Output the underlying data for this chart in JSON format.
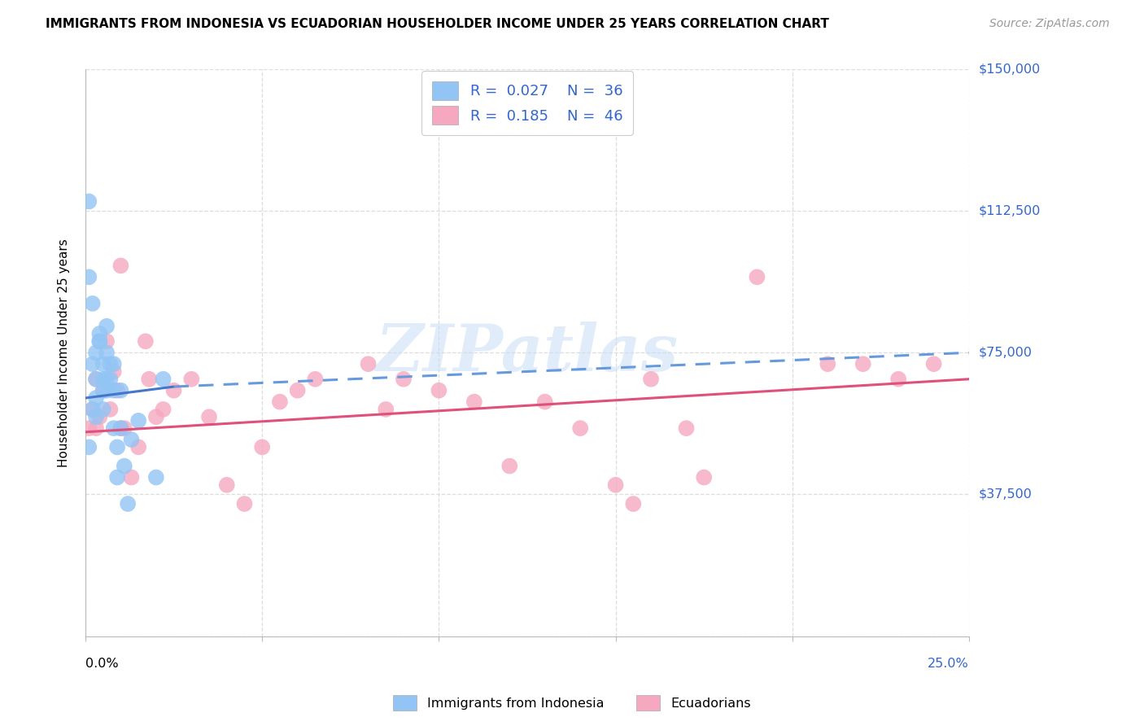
{
  "title": "IMMIGRANTS FROM INDONESIA VS ECUADORIAN HOUSEHOLDER INCOME UNDER 25 YEARS CORRELATION CHART",
  "source": "Source: ZipAtlas.com",
  "ylabel": "Householder Income Under 25 years",
  "xlim": [
    0.0,
    0.25
  ],
  "ylim": [
    0,
    150000
  ],
  "blue_color": "#92C5F5",
  "pink_color": "#F5A8C0",
  "trend_blue_solid": "#4477CC",
  "trend_blue_dash": "#6699DD",
  "trend_pink": "#E0507A",
  "legend_text_color": "#3366CC",
  "grid_color": "#DDDDDD",
  "blue_trend_x0": 0.0,
  "blue_trend_y0": 63000,
  "blue_trend_x1": 0.025,
  "blue_trend_y1": 66000,
  "blue_trend_x2": 0.25,
  "blue_trend_y2": 75000,
  "pink_trend_x0": 0.0,
  "pink_trend_y0": 54000,
  "pink_trend_x1": 0.25,
  "pink_trend_y1": 68000,
  "blue_x": [
    0.001,
    0.001,
    0.002,
    0.002,
    0.003,
    0.003,
    0.003,
    0.003,
    0.004,
    0.004,
    0.005,
    0.005,
    0.005,
    0.005,
    0.006,
    0.006,
    0.006,
    0.007,
    0.007,
    0.008,
    0.008,
    0.008,
    0.009,
    0.009,
    0.01,
    0.01,
    0.011,
    0.012,
    0.013,
    0.015,
    0.02,
    0.022,
    0.001,
    0.002,
    0.004,
    0.006
  ],
  "blue_y": [
    50000,
    95000,
    60000,
    72000,
    75000,
    68000,
    58000,
    63000,
    78000,
    80000,
    68000,
    65000,
    72000,
    60000,
    68000,
    75000,
    65000,
    68000,
    72000,
    65000,
    55000,
    72000,
    50000,
    42000,
    55000,
    65000,
    45000,
    35000,
    52000,
    57000,
    42000,
    68000,
    115000,
    88000,
    78000,
    82000
  ],
  "pink_x": [
    0.001,
    0.002,
    0.003,
    0.003,
    0.004,
    0.005,
    0.006,
    0.007,
    0.008,
    0.009,
    0.01,
    0.011,
    0.013,
    0.015,
    0.017,
    0.018,
    0.02,
    0.022,
    0.025,
    0.03,
    0.035,
    0.04,
    0.045,
    0.05,
    0.055,
    0.06,
    0.065,
    0.08,
    0.085,
    0.09,
    0.1,
    0.11,
    0.12,
    0.13,
    0.14,
    0.15,
    0.155,
    0.16,
    0.17,
    0.175,
    0.19,
    0.21,
    0.22,
    0.23,
    0.24,
    0.01
  ],
  "pink_y": [
    55000,
    60000,
    68000,
    55000,
    58000,
    65000,
    78000,
    60000,
    70000,
    65000,
    55000,
    55000,
    42000,
    50000,
    78000,
    68000,
    58000,
    60000,
    65000,
    68000,
    58000,
    40000,
    35000,
    50000,
    62000,
    65000,
    68000,
    72000,
    60000,
    68000,
    65000,
    62000,
    45000,
    62000,
    55000,
    40000,
    35000,
    68000,
    55000,
    42000,
    95000,
    72000,
    72000,
    68000,
    72000,
    98000
  ]
}
